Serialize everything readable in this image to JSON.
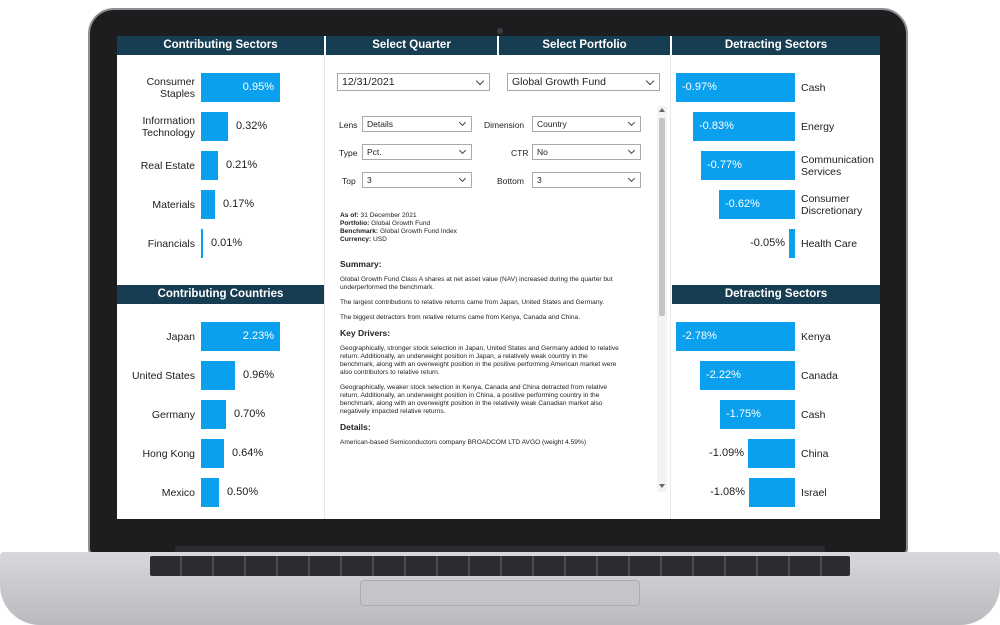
{
  "panels": {
    "contributing_sectors": {
      "title": "Contributing Sectors",
      "rows": [
        {
          "label": "Consumer Staples",
          "value": "0.95%",
          "pct": 0.95
        },
        {
          "label": "Information Technology",
          "value": "0.32%",
          "pct": 0.32
        },
        {
          "label": "Real Estate",
          "value": "0.21%",
          "pct": 0.21
        },
        {
          "label": "Materials",
          "value": "0.17%",
          "pct": 0.17
        },
        {
          "label": "Financials",
          "value": "0.01%",
          "pct": 0.01
        }
      ]
    },
    "contributing_countries": {
      "title": "Contributing Countries",
      "rows": [
        {
          "label": "Japan",
          "value": "2.23%",
          "pct": 2.23
        },
        {
          "label": "United States",
          "value": "0.96%",
          "pct": 0.96
        },
        {
          "label": "Germany",
          "value": "0.70%",
          "pct": 0.7
        },
        {
          "label": "Hong Kong",
          "value": "0.64%",
          "pct": 0.64
        },
        {
          "label": "Mexico",
          "value": "0.50%",
          "pct": 0.5
        }
      ]
    },
    "detracting_sectors": {
      "title": "Detracting Sectors",
      "rows": [
        {
          "label": "Cash",
          "value": "-0.97%",
          "pct": 0.97
        },
        {
          "label": "Energy",
          "value": "-0.83%",
          "pct": 0.83
        },
        {
          "label": "Communication Services",
          "value": "-0.77%",
          "pct": 0.77
        },
        {
          "label": "Consumer Discretionary",
          "value": "-0.62%",
          "pct": 0.62
        },
        {
          "label": "Health Care",
          "value": "-0.05%",
          "pct": 0.05
        }
      ]
    },
    "detracting_countries": {
      "title": "Detracting Sectors",
      "rows": [
        {
          "label": "Kenya",
          "value": "-2.78%",
          "pct": 2.78
        },
        {
          "label": "Canada",
          "value": "-2.22%",
          "pct": 2.22
        },
        {
          "label": "Cash",
          "value": "-1.75%",
          "pct": 1.75
        },
        {
          "label": "China",
          "value": "-1.09%",
          "pct": 1.09
        },
        {
          "label": "Israel",
          "value": "-1.08%",
          "pct": 1.08
        }
      ]
    }
  },
  "quarter": {
    "title": "Select Quarter",
    "value": "12/31/2021"
  },
  "portfolio": {
    "title": "Select Portfolio",
    "value": "Global Growth Fund"
  },
  "controls": {
    "lens": {
      "label": "Lens",
      "value": "Details"
    },
    "dimension": {
      "label": "Dimension",
      "value": "Country"
    },
    "type": {
      "label": "Type",
      "value": "Pct."
    },
    "ctr": {
      "label": "CTR",
      "value": "No"
    },
    "top": {
      "label": "Top",
      "value": "3"
    },
    "bottom": {
      "label": "Bottom",
      "value": "3"
    }
  },
  "meta": {
    "as_of_label": "As of:",
    "as_of": "31 December 2021",
    "portfolio_label": "Portfolio:",
    "portfolio": "Global Growth Fund",
    "benchmark_label": "Benchmark:",
    "benchmark": "Global Growth Fund Index",
    "currency_label": "Currency:",
    "currency": "USD"
  },
  "commentary": {
    "summary_heading": "Summary:",
    "summary_p1": "Global Growth Fund Class A shares at net asset value (NAV) increased during the quarter but underperformed the benchmark.",
    "summary_p2": "The largest contributions to relative returns came from Japan, United States and Germany.",
    "summary_p3": "The biggest detractors from relative returns came from Kenya, Canada and China.",
    "drivers_heading": "Key Drivers:",
    "drivers_p1": "Geographically, stronger stock selection in Japan, United States and Germany added to relative return. Additionally, an underweight position in Japan, a relatively weak country in the benchmark, along with an overweight position in the positive performing American market were also contributors to relative return.",
    "drivers_p2": "Geographically, weaker stock selection in Kenya, Canada and China detracted from relative return. Additionally, an underweight position in China, a positive performing country in the benchmark, along with an overweight position in the relatively weak Canadian market also negatively impacted relative returns.",
    "details_heading": "Details:",
    "details_p1": "American-based Semiconductors company BROADCOM LTD AVGO (weight 4.59%)"
  },
  "colors": {
    "header_bg": "#173d52",
    "bar": "#0aa0ee"
  }
}
